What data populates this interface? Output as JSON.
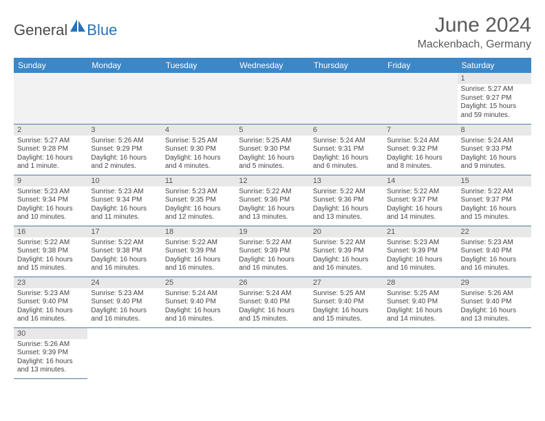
{
  "brand": {
    "name_part1": "General",
    "name_part2": "Blue",
    "color_gray": "#4a4a4a",
    "color_blue": "#2a72b5",
    "shape_color": "#2a72b5"
  },
  "header": {
    "title": "June 2024",
    "location": "Mackenbach, Germany",
    "title_color": "#5a5a5a",
    "title_fontsize": 30,
    "location_fontsize": 16
  },
  "calendar": {
    "header_bg": "#3b87c8",
    "header_fg": "#ffffff",
    "daynum_bg": "#e8e8e8",
    "border_color": "#4a7ba8",
    "empty_bg": "#f2f2f2",
    "text_color": "#444444",
    "body_fontsize": 10,
    "daynum_fontsize": 11,
    "daynames": [
      "Sunday",
      "Monday",
      "Tuesday",
      "Wednesday",
      "Thursday",
      "Friday",
      "Saturday"
    ],
    "weeks": [
      [
        null,
        null,
        null,
        null,
        null,
        null,
        {
          "n": "1",
          "sunrise": "Sunrise: 5:27 AM",
          "sunset": "Sunset: 9:27 PM",
          "daylight": "Daylight: 15 hours and 59 minutes."
        }
      ],
      [
        {
          "n": "2",
          "sunrise": "Sunrise: 5:27 AM",
          "sunset": "Sunset: 9:28 PM",
          "daylight": "Daylight: 16 hours and 1 minute."
        },
        {
          "n": "3",
          "sunrise": "Sunrise: 5:26 AM",
          "sunset": "Sunset: 9:29 PM",
          "daylight": "Daylight: 16 hours and 2 minutes."
        },
        {
          "n": "4",
          "sunrise": "Sunrise: 5:25 AM",
          "sunset": "Sunset: 9:30 PM",
          "daylight": "Daylight: 16 hours and 4 minutes."
        },
        {
          "n": "5",
          "sunrise": "Sunrise: 5:25 AM",
          "sunset": "Sunset: 9:30 PM",
          "daylight": "Daylight: 16 hours and 5 minutes."
        },
        {
          "n": "6",
          "sunrise": "Sunrise: 5:24 AM",
          "sunset": "Sunset: 9:31 PM",
          "daylight": "Daylight: 16 hours and 6 minutes."
        },
        {
          "n": "7",
          "sunrise": "Sunrise: 5:24 AM",
          "sunset": "Sunset: 9:32 PM",
          "daylight": "Daylight: 16 hours and 8 minutes."
        },
        {
          "n": "8",
          "sunrise": "Sunrise: 5:24 AM",
          "sunset": "Sunset: 9:33 PM",
          "daylight": "Daylight: 16 hours and 9 minutes."
        }
      ],
      [
        {
          "n": "9",
          "sunrise": "Sunrise: 5:23 AM",
          "sunset": "Sunset: 9:34 PM",
          "daylight": "Daylight: 16 hours and 10 minutes."
        },
        {
          "n": "10",
          "sunrise": "Sunrise: 5:23 AM",
          "sunset": "Sunset: 9:34 PM",
          "daylight": "Daylight: 16 hours and 11 minutes."
        },
        {
          "n": "11",
          "sunrise": "Sunrise: 5:23 AM",
          "sunset": "Sunset: 9:35 PM",
          "daylight": "Daylight: 16 hours and 12 minutes."
        },
        {
          "n": "12",
          "sunrise": "Sunrise: 5:22 AM",
          "sunset": "Sunset: 9:36 PM",
          "daylight": "Daylight: 16 hours and 13 minutes."
        },
        {
          "n": "13",
          "sunrise": "Sunrise: 5:22 AM",
          "sunset": "Sunset: 9:36 PM",
          "daylight": "Daylight: 16 hours and 13 minutes."
        },
        {
          "n": "14",
          "sunrise": "Sunrise: 5:22 AM",
          "sunset": "Sunset: 9:37 PM",
          "daylight": "Daylight: 16 hours and 14 minutes."
        },
        {
          "n": "15",
          "sunrise": "Sunrise: 5:22 AM",
          "sunset": "Sunset: 9:37 PM",
          "daylight": "Daylight: 16 hours and 15 minutes."
        }
      ],
      [
        {
          "n": "16",
          "sunrise": "Sunrise: 5:22 AM",
          "sunset": "Sunset: 9:38 PM",
          "daylight": "Daylight: 16 hours and 15 minutes."
        },
        {
          "n": "17",
          "sunrise": "Sunrise: 5:22 AM",
          "sunset": "Sunset: 9:38 PM",
          "daylight": "Daylight: 16 hours and 16 minutes."
        },
        {
          "n": "18",
          "sunrise": "Sunrise: 5:22 AM",
          "sunset": "Sunset: 9:39 PM",
          "daylight": "Daylight: 16 hours and 16 minutes."
        },
        {
          "n": "19",
          "sunrise": "Sunrise: 5:22 AM",
          "sunset": "Sunset: 9:39 PM",
          "daylight": "Daylight: 16 hours and 16 minutes."
        },
        {
          "n": "20",
          "sunrise": "Sunrise: 5:22 AM",
          "sunset": "Sunset: 9:39 PM",
          "daylight": "Daylight: 16 hours and 16 minutes."
        },
        {
          "n": "21",
          "sunrise": "Sunrise: 5:23 AM",
          "sunset": "Sunset: 9:39 PM",
          "daylight": "Daylight: 16 hours and 16 minutes."
        },
        {
          "n": "22",
          "sunrise": "Sunrise: 5:23 AM",
          "sunset": "Sunset: 9:40 PM",
          "daylight": "Daylight: 16 hours and 16 minutes."
        }
      ],
      [
        {
          "n": "23",
          "sunrise": "Sunrise: 5:23 AM",
          "sunset": "Sunset: 9:40 PM",
          "daylight": "Daylight: 16 hours and 16 minutes."
        },
        {
          "n": "24",
          "sunrise": "Sunrise: 5:23 AM",
          "sunset": "Sunset: 9:40 PM",
          "daylight": "Daylight: 16 hours and 16 minutes."
        },
        {
          "n": "25",
          "sunrise": "Sunrise: 5:24 AM",
          "sunset": "Sunset: 9:40 PM",
          "daylight": "Daylight: 16 hours and 16 minutes."
        },
        {
          "n": "26",
          "sunrise": "Sunrise: 5:24 AM",
          "sunset": "Sunset: 9:40 PM",
          "daylight": "Daylight: 16 hours and 15 minutes."
        },
        {
          "n": "27",
          "sunrise": "Sunrise: 5:25 AM",
          "sunset": "Sunset: 9:40 PM",
          "daylight": "Daylight: 16 hours and 15 minutes."
        },
        {
          "n": "28",
          "sunrise": "Sunrise: 5:25 AM",
          "sunset": "Sunset: 9:40 PM",
          "daylight": "Daylight: 16 hours and 14 minutes."
        },
        {
          "n": "29",
          "sunrise": "Sunrise: 5:26 AM",
          "sunset": "Sunset: 9:40 PM",
          "daylight": "Daylight: 16 hours and 13 minutes."
        }
      ],
      [
        {
          "n": "30",
          "sunrise": "Sunrise: 5:26 AM",
          "sunset": "Sunset: 9:39 PM",
          "daylight": "Daylight: 16 hours and 13 minutes."
        },
        null,
        null,
        null,
        null,
        null,
        null
      ]
    ]
  }
}
